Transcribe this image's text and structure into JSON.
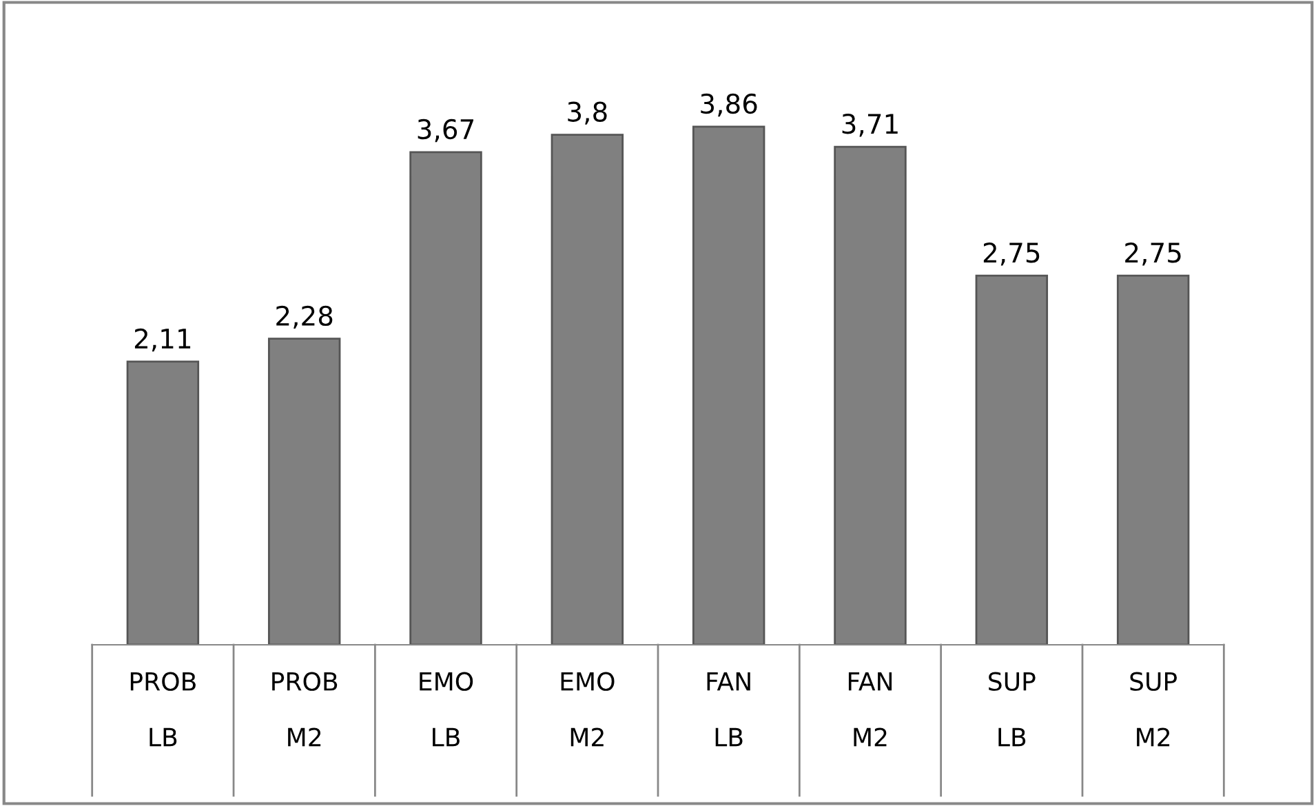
{
  "chart_data": {
    "type": "bar",
    "categories": [
      "PROB\n\nLB",
      "PROB\n\nM2",
      "EMO\n\nLB",
      "EMO\n\nM2",
      "FAN\n\nLB",
      "FAN\n\nM2",
      "SUP\n\nLB",
      "SUP\n\nM2"
    ],
    "values": [
      2.11,
      2.28,
      3.67,
      3.8,
      3.86,
      3.71,
      2.75,
      2.75
    ],
    "value_labels": [
      "2,11",
      "2,28",
      "3,67",
      "3,8",
      "3,86",
      "3,71",
      "2,75",
      "2,75"
    ],
    "color": "#808080",
    "grid": false
  }
}
